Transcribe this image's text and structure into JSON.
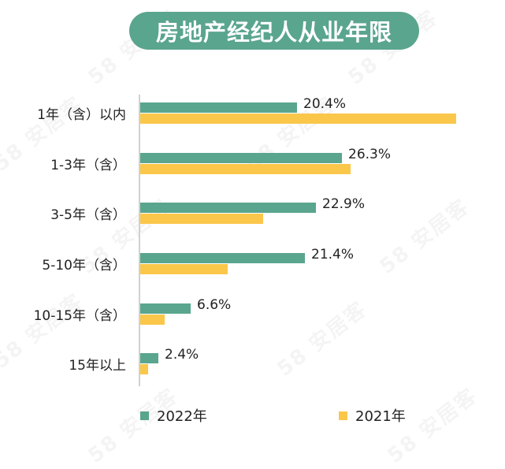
{
  "title": "房地产经纪人从业年限",
  "watermark": "58 安居客",
  "colors": {
    "series_2022": "#5aa58e",
    "series_2021": "#fbc74a",
    "title_bg": "#5aa58e"
  },
  "legend": [
    {
      "label": "2022年",
      "color": "#5aa58e"
    },
    {
      "label": "2021年",
      "color": "#fbc74a"
    }
  ],
  "rows": [
    {
      "label": "1年（含）以内",
      "v2022": 20.4,
      "v2021": 41.1,
      "v2022_label": "20.4%"
    },
    {
      "label": "1-3年（含）",
      "v2022": 26.3,
      "v2021": 27.4,
      "v2022_label": "26.3%"
    },
    {
      "label": "3-5年（含）",
      "v2022": 22.9,
      "v2021": 16.0,
      "v2022_label": "22.9%"
    },
    {
      "label": "5-10年（含）",
      "v2022": 21.4,
      "v2021": 11.4,
      "v2022_label": "21.4%"
    },
    {
      "label": "10-15年（含）",
      "v2022": 6.6,
      "v2021": 3.2,
      "v2022_label": "6.6%"
    },
    {
      "label": "15年以上",
      "v2022": 2.4,
      "v2021": 1.0,
      "v2022_label": "2.4%"
    }
  ],
  "chart_data": {
    "type": "bar",
    "orientation": "horizontal",
    "title": "房地产经纪人从业年限",
    "categories": [
      "1年（含）以内",
      "1-3年（含）",
      "3-5年（含）",
      "5-10年（含）",
      "10-15年（含）",
      "15年以上"
    ],
    "series": [
      {
        "name": "2022年",
        "color": "#5aa58e",
        "values": [
          20.4,
          26.3,
          22.9,
          21.4,
          6.6,
          2.4
        ]
      },
      {
        "name": "2021年",
        "color": "#fbc74a",
        "values": [
          41.1,
          27.4,
          16.0,
          11.4,
          3.2,
          1.0
        ]
      }
    ],
    "data_labels": {
      "2022年": [
        "20.4%",
        "26.3%",
        "22.9%",
        "21.4%",
        "6.6%",
        "2.4%"
      ]
    },
    "xlabel": "",
    "ylabel": "",
    "unit": "%",
    "grid": false,
    "legend_position": "bottom"
  }
}
